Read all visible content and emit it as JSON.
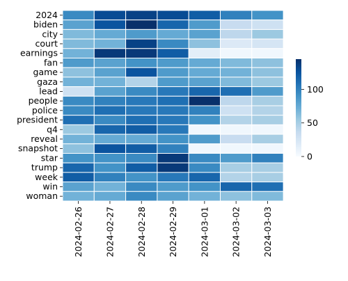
{
  "chart_data": {
    "type": "heatmap",
    "rows": [
      "2024",
      "biden",
      "city",
      "court",
      "earnings",
      "fan",
      "game",
      "gaza",
      "lead",
      "people",
      "police",
      "president",
      "q4",
      "reveal",
      "snapshot",
      "star",
      "trump",
      "week",
      "win",
      "woman"
    ],
    "columns": [
      "2024-02-26",
      "2024-02-27",
      "2024-02-28",
      "2024-02-29",
      "2024-03-01",
      "2024-03-02",
      "2024-03-03"
    ],
    "values": [
      [
        95,
        130,
        135,
        130,
        120,
        100,
        90
      ],
      [
        80,
        125,
        150,
        115,
        85,
        35,
        30
      ],
      [
        65,
        75,
        85,
        75,
        80,
        40,
        55
      ],
      [
        65,
        70,
        135,
        95,
        60,
        20,
        25
      ],
      [
        70,
        140,
        140,
        120,
        15,
        5,
        5
      ],
      [
        85,
        80,
        90,
        85,
        75,
        65,
        60
      ],
      [
        60,
        80,
        125,
        85,
        75,
        70,
        60
      ],
      [
        70,
        70,
        45,
        85,
        80,
        65,
        55
      ],
      [
        30,
        80,
        95,
        105,
        115,
        110,
        85
      ],
      [
        95,
        100,
        105,
        110,
        150,
        40,
        50
      ],
      [
        95,
        110,
        105,
        105,
        100,
        30,
        45
      ],
      [
        110,
        95,
        110,
        105,
        90,
        45,
        50
      ],
      [
        55,
        115,
        120,
        105,
        5,
        5,
        5
      ],
      [
        70,
        75,
        75,
        90,
        85,
        35,
        50
      ],
      [
        60,
        125,
        120,
        100,
        5,
        5,
        5
      ],
      [
        90,
        90,
        95,
        140,
        95,
        85,
        100
      ],
      [
        115,
        90,
        120,
        140,
        95,
        50,
        50
      ],
      [
        120,
        100,
        90,
        105,
        115,
        45,
        50
      ],
      [
        80,
        70,
        95,
        85,
        90,
        115,
        110
      ],
      [
        70,
        75,
        95,
        80,
        70,
        60,
        65
      ]
    ],
    "colorbar": {
      "min": 0,
      "max": 145,
      "ticks": [
        0,
        50,
        100
      ]
    },
    "colormap": [
      "#f7fbff",
      "#deebf7",
      "#c6dbef",
      "#9ecae1",
      "#6baed6",
      "#4292c6",
      "#2171b5",
      "#08519c",
      "#08306b"
    ]
  }
}
